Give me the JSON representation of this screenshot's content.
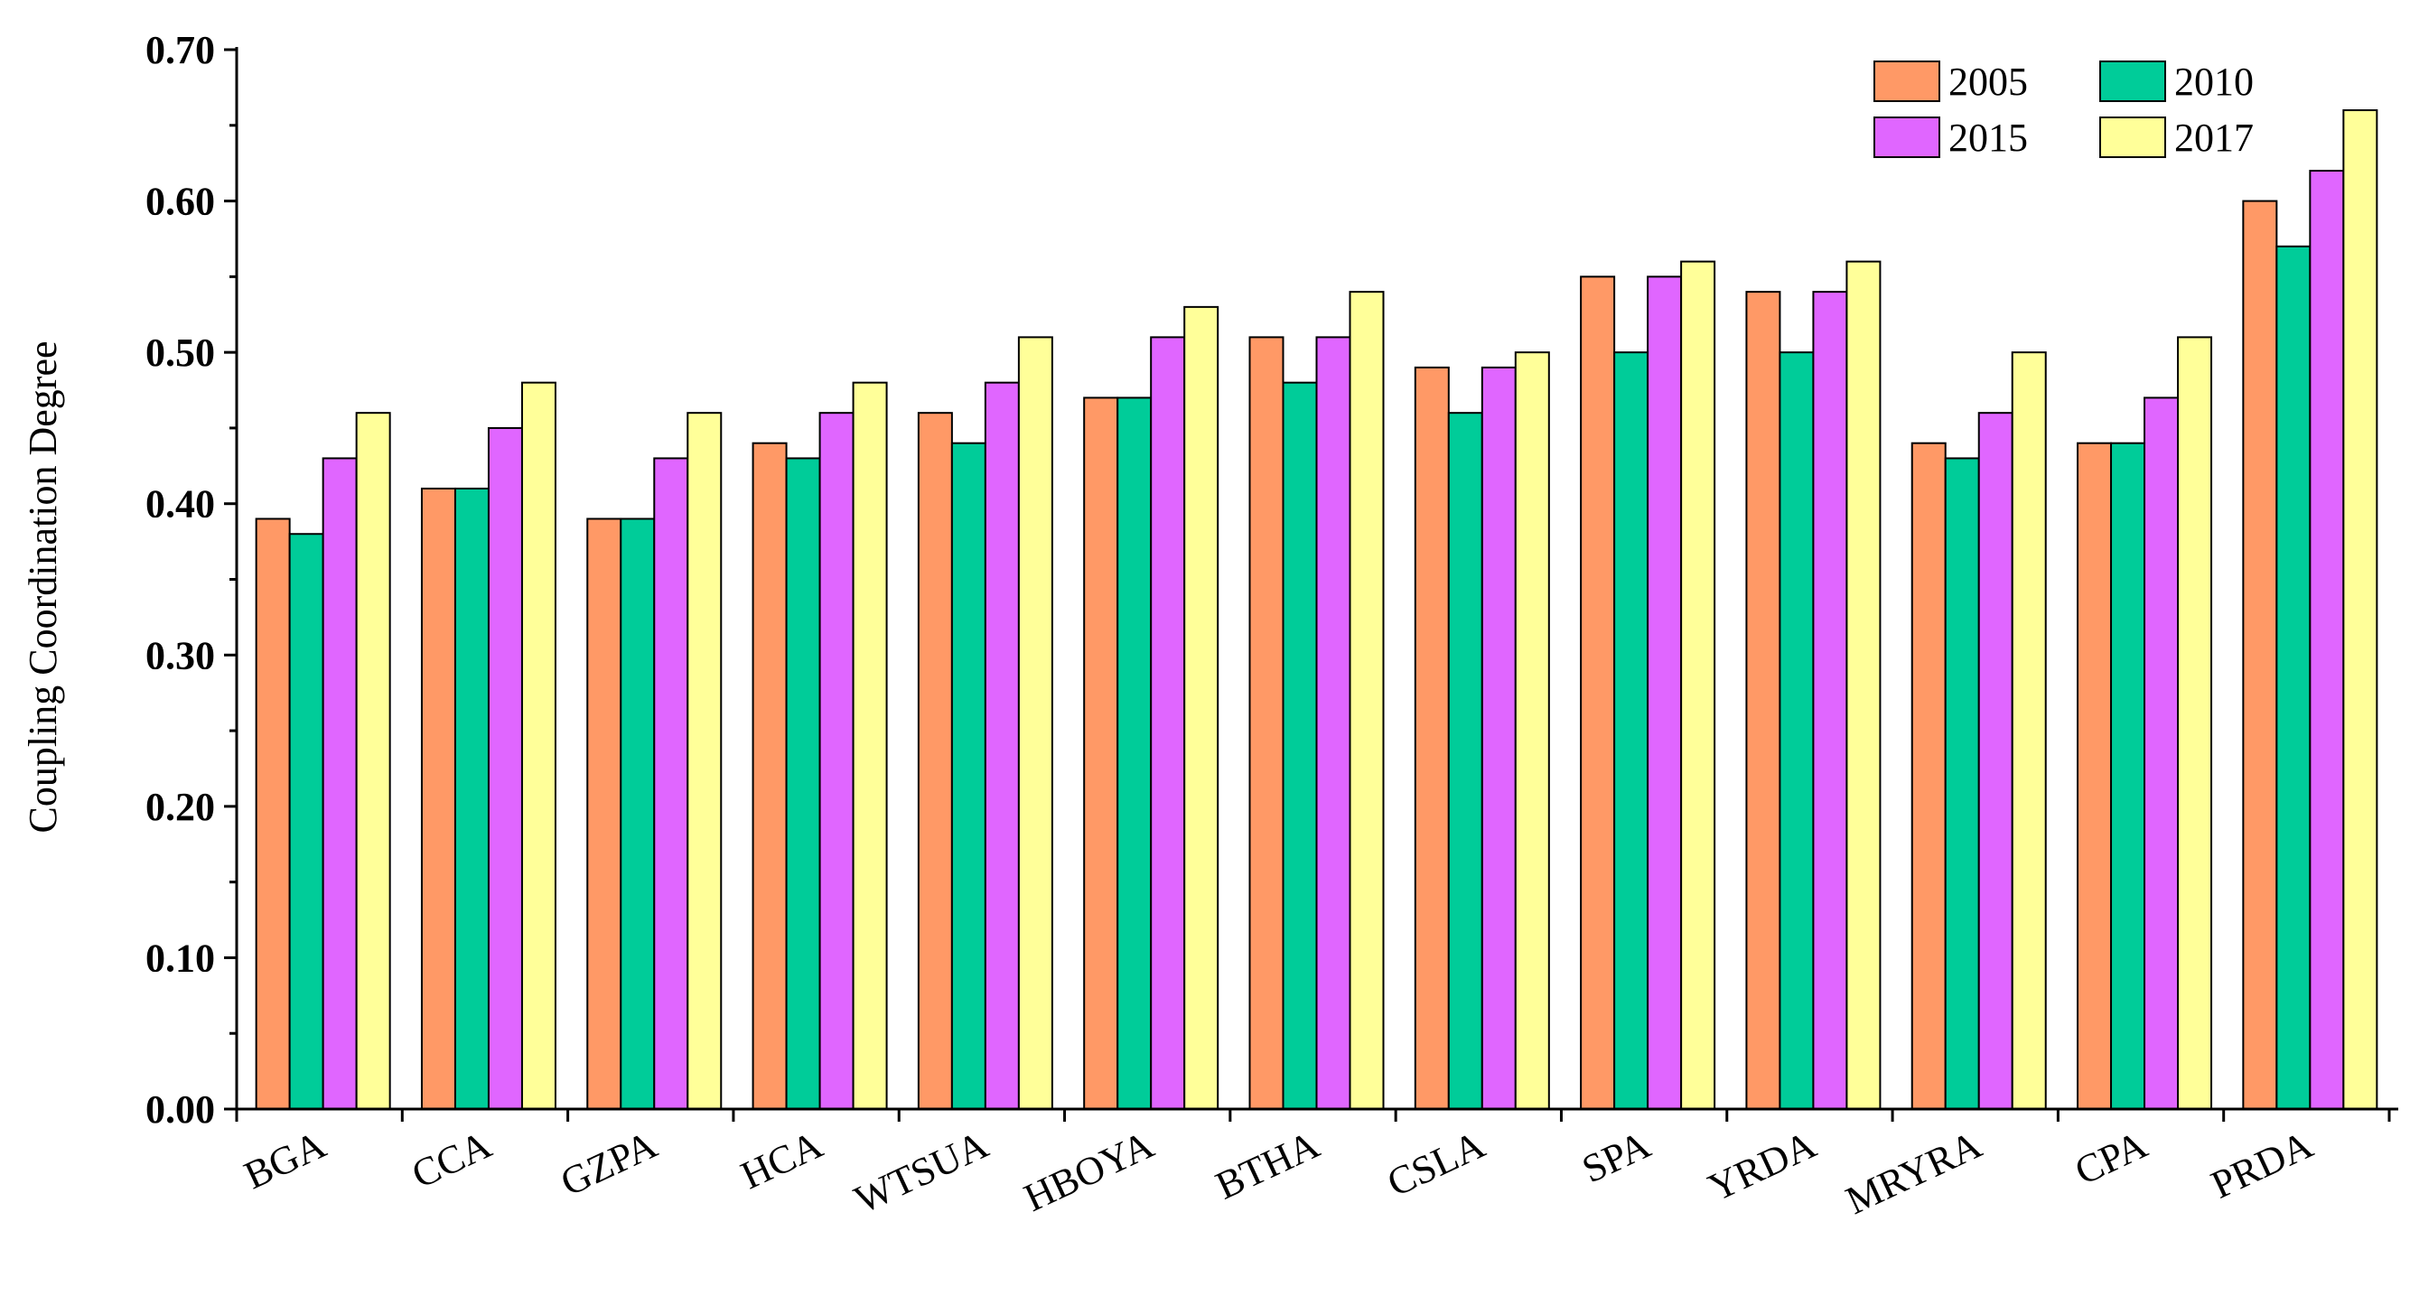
{
  "chart_data": {
    "type": "bar",
    "title": "",
    "xlabel": "",
    "ylabel": "Coupling Coordination Degree",
    "ylim": [
      0,
      0.7
    ],
    "yticks": [
      "0.00",
      "0.10",
      "0.20",
      "0.30",
      "0.40",
      "0.50",
      "0.60",
      "0.70"
    ],
    "grid": false,
    "legend_position": "top-right",
    "categories": [
      "BGA",
      "CCA",
      "GZPA",
      "HCA",
      "WTSUA",
      "HBOYA",
      "BTHA",
      "CSLA",
      "SPA",
      "YRDA",
      "MRYRA",
      "CPA",
      "PRDA"
    ],
    "series": [
      {
        "name": "2005",
        "color": "#FF9966",
        "values": [
          0.39,
          0.41,
          0.39,
          0.44,
          0.46,
          0.47,
          0.51,
          0.49,
          0.55,
          0.54,
          0.44,
          0.44,
          0.6
        ]
      },
      {
        "name": "2010",
        "color": "#00CC99",
        "values": [
          0.38,
          0.41,
          0.39,
          0.43,
          0.44,
          0.47,
          0.48,
          0.46,
          0.5,
          0.5,
          0.43,
          0.44,
          0.57
        ]
      },
      {
        "name": "2015",
        "color": "#E066FF",
        "values": [
          0.43,
          0.45,
          0.43,
          0.46,
          0.48,
          0.51,
          0.51,
          0.49,
          0.55,
          0.54,
          0.46,
          0.47,
          0.62
        ]
      },
      {
        "name": "2017",
        "color": "#FFFF99",
        "values": [
          0.46,
          0.48,
          0.46,
          0.48,
          0.51,
          0.53,
          0.54,
          0.5,
          0.56,
          0.56,
          0.5,
          0.51,
          0.66
        ]
      }
    ]
  }
}
